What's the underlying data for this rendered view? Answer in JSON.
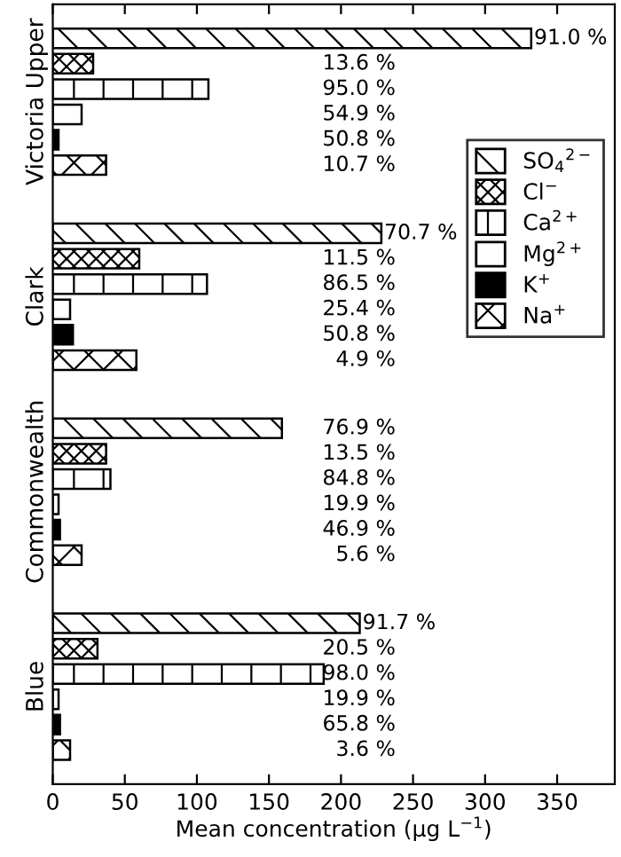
{
  "chart_data": {
    "type": "bar",
    "orientation": "horizontal",
    "xlabel": "Mean concentration (µg L$^{−1}$)",
    "categories": [
      "Victoria Upper",
      "Clark",
      "Commonwealth",
      "Blue"
    ],
    "xlim": [
      0,
      390
    ],
    "xticks": [
      0,
      50,
      100,
      150,
      200,
      250,
      300,
      350
    ],
    "grid": false,
    "legend": "right",
    "series": [
      {
        "name": "SO$_{4}$$^{2−}$",
        "color": "#000000",
        "values": [
          332,
          228,
          159,
          213
        ]
      },
      {
        "name": "Cl$^{−}$",
        "color": "#000000",
        "values": [
          28,
          60,
          37,
          31
        ]
      },
      {
        "name": "Ca$^{2+}$",
        "color": "#000000",
        "values": [
          108,
          107,
          40,
          188
        ]
      },
      {
        "name": "Mg$^{2+}$",
        "color": "#ffffff",
        "values": [
          20,
          12,
          4,
          4
        ]
      },
      {
        "name": "K$^{+}$",
        "color": "#000000",
        "values": [
          4,
          14,
          5,
          5
        ]
      },
      {
        "name": "Na$^{+}$",
        "color": "#000000",
        "values": [
          37,
          58,
          20,
          12
        ]
      }
    ],
    "annotations": [
      "91.0 %",
      "13.6 %",
      "95.0 %",
      "54.9 %",
      "50.8 %",
      "10.7 %",
      "70.7 %",
      "11.5 %",
      "86.5 %",
      "25.4 %",
      "50.8 %",
      "4.9 %",
      "76.9 %",
      "13.5 %",
      "84.8 %",
      "19.9 %",
      "46.9 %",
      "5.6 %",
      "91.7 %",
      "20.5 %",
      "98.0 %",
      "19.9 %",
      "65.8 %",
      "3.6 %"
    ]
  }
}
